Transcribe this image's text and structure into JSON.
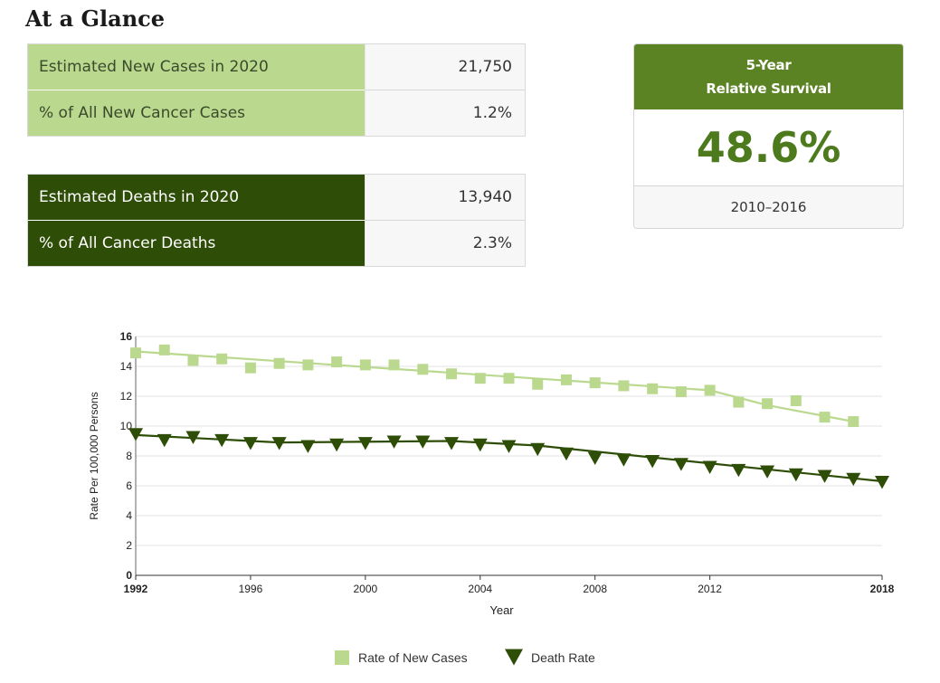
{
  "page_title": "At a Glance",
  "incidence_table": [
    {
      "label": "Estimated New Cases in 2020",
      "value": "21,750"
    },
    {
      "label": "% of All New Cancer Cases",
      "value": "1.2%"
    }
  ],
  "deaths_table": [
    {
      "label": "Estimated Deaths in 2020",
      "value": "13,940"
    },
    {
      "label": "% of All Cancer Deaths",
      "value": "2.3%"
    }
  ],
  "survival": {
    "heading_line1": "5-Year",
    "heading_line2": "Relative Survival",
    "value": "48.6%",
    "years": "2010–2016"
  },
  "colors": {
    "new_cases": "#bad98f",
    "death_rate": "#2e4d07",
    "survival_header": "#5b8323",
    "survival_value": "#4d7a1c"
  },
  "chart_data": {
    "type": "line",
    "xlabel": "Year",
    "ylabel": "Rate Per 100,000 Persons",
    "xlim": [
      1992,
      2018
    ],
    "ylim": [
      0,
      16
    ],
    "x_ticks": [
      {
        "value": 1992,
        "label": "1992",
        "bold": true
      },
      {
        "value": 1996,
        "label": "1996",
        "bold": false
      },
      {
        "value": 2000,
        "label": "2000",
        "bold": false
      },
      {
        "value": 2004,
        "label": "2004",
        "bold": false
      },
      {
        "value": 2008,
        "label": "2008",
        "bold": false
      },
      {
        "value": 2012,
        "label": "2012",
        "bold": false
      },
      {
        "value": 2018,
        "label": "2018",
        "bold": true
      }
    ],
    "y_ticks": [
      0,
      2,
      4,
      6,
      8,
      10,
      12,
      14,
      16
    ],
    "grid": true,
    "legend_position": "bottom-center",
    "series": [
      {
        "name": "Rate of New Cases",
        "marker": "square",
        "x": [
          1992,
          1993,
          1994,
          1995,
          1996,
          1997,
          1998,
          1999,
          2000,
          2001,
          2002,
          2003,
          2004,
          2005,
          2006,
          2007,
          2008,
          2009,
          2010,
          2011,
          2012,
          2013,
          2014,
          2015,
          2016,
          2017
        ],
        "values": [
          14.9,
          15.1,
          14.4,
          14.5,
          13.9,
          14.2,
          14.1,
          14.3,
          14.1,
          14.1,
          13.8,
          13.5,
          13.2,
          13.2,
          12.8,
          13.1,
          12.9,
          12.7,
          12.5,
          12.3,
          12.4,
          11.6,
          11.5,
          11.7,
          10.6,
          10.3
        ],
        "trend": [
          [
            1992,
            15.0
          ],
          [
            2012,
            12.4
          ],
          [
            2014,
            11.4
          ],
          [
            2017,
            10.3
          ]
        ]
      },
      {
        "name": "Death Rate",
        "marker": "triangle-down",
        "x": [
          1992,
          1993,
          1994,
          1995,
          1996,
          1997,
          1998,
          1999,
          2000,
          2001,
          2002,
          2003,
          2004,
          2005,
          2006,
          2007,
          2008,
          2009,
          2010,
          2011,
          2012,
          2013,
          2014,
          2015,
          2016,
          2017,
          2018
        ],
        "values": [
          9.5,
          9.1,
          9.3,
          9.1,
          8.9,
          8.9,
          8.7,
          8.8,
          8.9,
          9.0,
          9.0,
          8.9,
          8.8,
          8.7,
          8.5,
          8.2,
          7.9,
          7.8,
          7.7,
          7.5,
          7.3,
          7.1,
          7.0,
          6.8,
          6.7,
          6.5,
          6.3
        ],
        "trend": [
          [
            1992,
            9.4
          ],
          [
            1997,
            8.9
          ],
          [
            2003,
            9.0
          ],
          [
            2006,
            8.7
          ],
          [
            2018,
            6.3
          ]
        ]
      }
    ]
  }
}
